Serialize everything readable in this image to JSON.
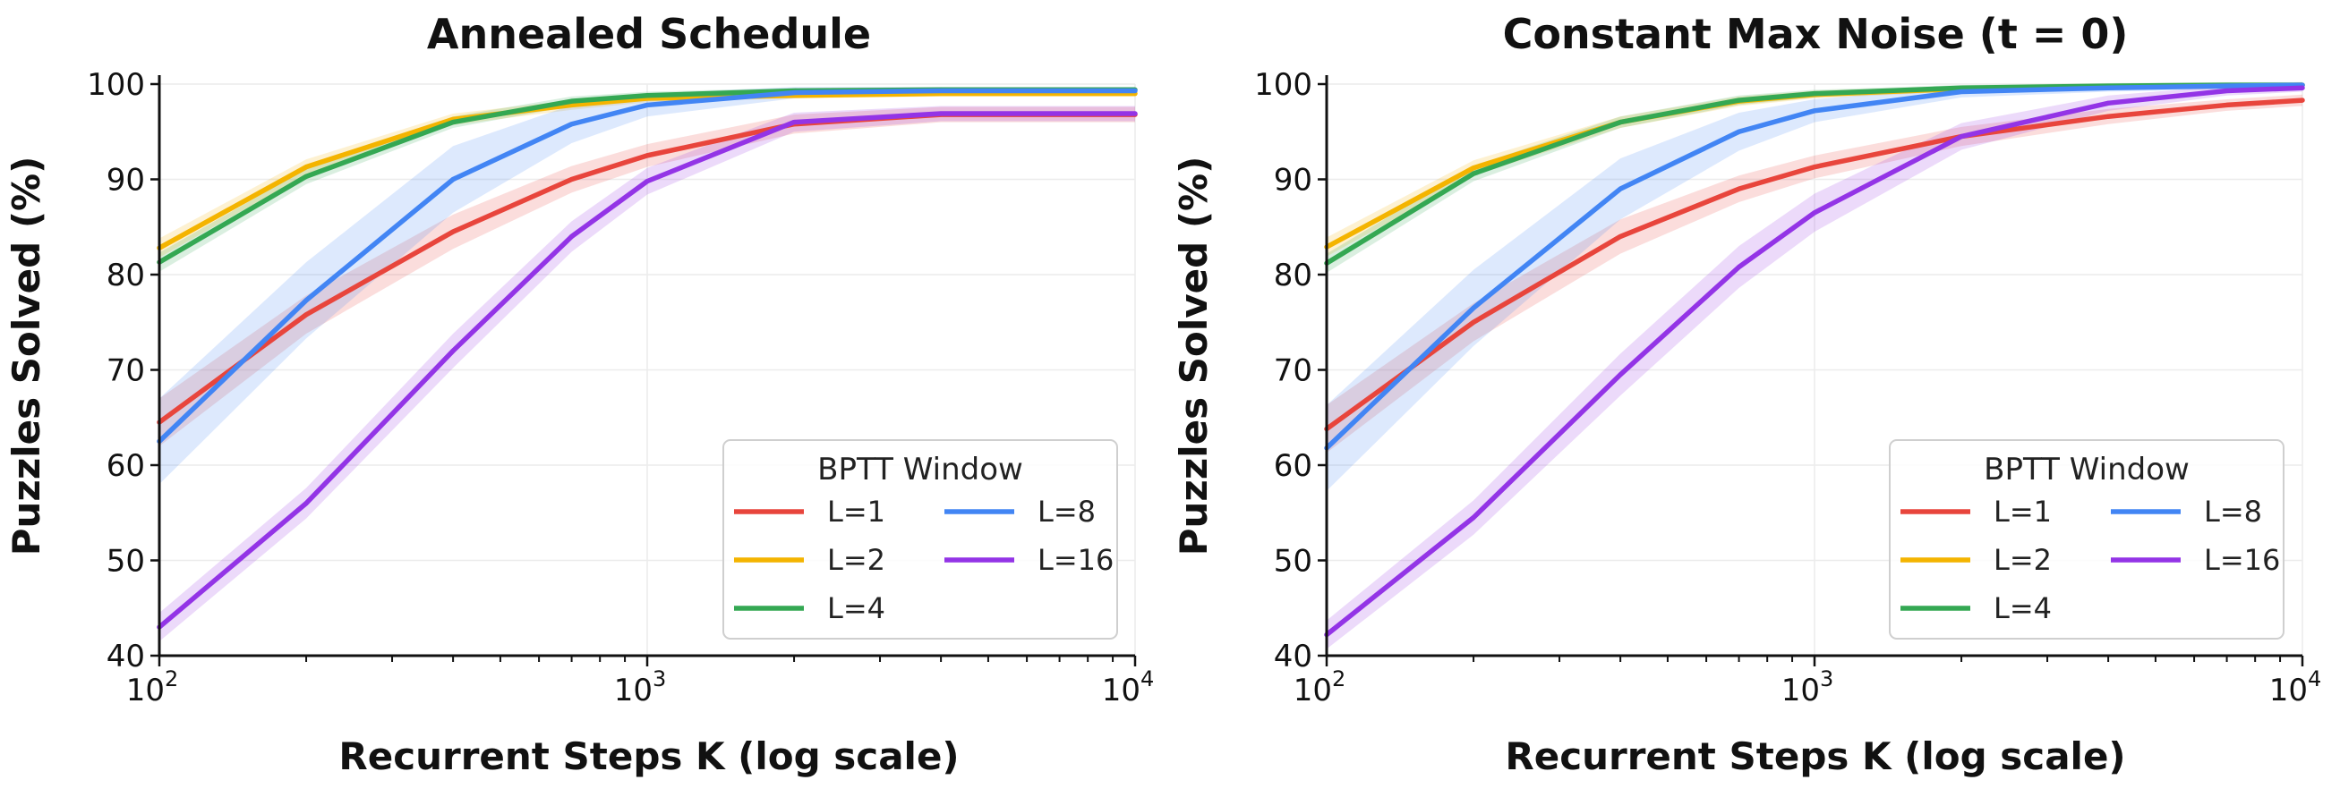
{
  "chart_data": [
    {
      "type": "line",
      "title": "Annealed Schedule",
      "xlabel": "Recurrent Steps K (log scale)",
      "ylabel": "Puzzles Solved (%)",
      "xscale": "log",
      "xlim": [
        100,
        10000
      ],
      "ylim": [
        40,
        100
      ],
      "xticks": [
        {
          "base": "10",
          "exp": "2"
        },
        {
          "base": "10",
          "exp": "3"
        },
        {
          "base": "10",
          "exp": "4"
        }
      ],
      "yticks": [
        "40",
        "50",
        "60",
        "70",
        "80",
        "90",
        "100"
      ],
      "grid": true,
      "legend": {
        "title": "BPTT Window",
        "placement": "lower-right",
        "columns": 2
      },
      "x": [
        100,
        200,
        400,
        700,
        1000,
        2000,
        4000,
        10000
      ],
      "series": [
        {
          "name": "L=1",
          "color": "#e8453c",
          "values": [
            64.5,
            75.8,
            84.5,
            90.0,
            92.5,
            95.8,
            96.8,
            96.8
          ],
          "band": [
            2.5,
            2.0,
            1.8,
            1.4,
            1.2,
            1.0,
            0.8,
            0.8
          ]
        },
        {
          "name": "L=2",
          "color": "#f4b400",
          "values": [
            82.8,
            91.3,
            96.3,
            97.8,
            98.5,
            98.8,
            99.0,
            99.0
          ],
          "band": [
            1.0,
            0.8,
            0.6,
            0.5,
            0.4,
            0.3,
            0.3,
            0.3
          ]
        },
        {
          "name": "L=4",
          "color": "#34a853",
          "values": [
            81.3,
            90.3,
            96.0,
            98.2,
            98.8,
            99.3,
            99.4,
            99.4
          ],
          "band": [
            1.0,
            0.8,
            0.6,
            0.5,
            0.4,
            0.3,
            0.3,
            0.3
          ]
        },
        {
          "name": "L=8",
          "color": "#4285f4",
          "values": [
            62.5,
            77.3,
            90.0,
            95.8,
            97.8,
            99.1,
            99.3,
            99.3
          ],
          "band": [
            4.5,
            4.0,
            3.5,
            2.0,
            1.2,
            0.6,
            0.4,
            0.4
          ]
        },
        {
          "name": "L=16",
          "color": "#9334e6",
          "values": [
            43.0,
            56.0,
            72.0,
            84.0,
            89.8,
            96.0,
            96.9,
            96.9
          ],
          "band": [
            1.5,
            1.6,
            1.8,
            1.6,
            1.4,
            1.0,
            0.8,
            0.8
          ]
        }
      ]
    },
    {
      "type": "line",
      "title": "Constant Max Noise (t = 0)",
      "xlabel": "Recurrent Steps K (log scale)",
      "ylabel": "Puzzles Solved (%)",
      "xscale": "log",
      "xlim": [
        100,
        10000
      ],
      "ylim": [
        40,
        100
      ],
      "xticks": [
        {
          "base": "10",
          "exp": "2"
        },
        {
          "base": "10",
          "exp": "3"
        },
        {
          "base": "10",
          "exp": "4"
        }
      ],
      "yticks": [
        "40",
        "50",
        "60",
        "70",
        "80",
        "90",
        "100"
      ],
      "grid": true,
      "legend": {
        "title": "BPTT Window",
        "placement": "lower-right",
        "columns": 2
      },
      "x": [
        100,
        200,
        400,
        700,
        1000,
        2000,
        4000,
        7000,
        10000
      ],
      "series": [
        {
          "name": "L=1",
          "color": "#e8453c",
          "values": [
            63.8,
            75.0,
            84.0,
            89.0,
            91.3,
            94.5,
            96.6,
            97.8,
            98.3
          ],
          "band": [
            2.5,
            2.0,
            1.8,
            1.4,
            1.2,
            1.0,
            0.8,
            0.6,
            0.6
          ]
        },
        {
          "name": "L=2",
          "color": "#f4b400",
          "values": [
            82.9,
            91.2,
            96.0,
            98.2,
            98.9,
            99.5,
            99.7,
            99.8,
            99.9
          ],
          "band": [
            1.0,
            0.8,
            0.6,
            0.5,
            0.4,
            0.3,
            0.3,
            0.3,
            0.3
          ]
        },
        {
          "name": "L=4",
          "color": "#34a853",
          "values": [
            81.2,
            90.6,
            96.0,
            98.3,
            99.0,
            99.6,
            99.8,
            99.9,
            99.9
          ],
          "band": [
            1.0,
            0.8,
            0.6,
            0.5,
            0.4,
            0.3,
            0.3,
            0.3,
            0.3
          ]
        },
        {
          "name": "L=8",
          "color": "#4285f4",
          "values": [
            61.8,
            76.5,
            89.0,
            95.0,
            97.2,
            99.2,
            99.6,
            99.8,
            99.9
          ],
          "band": [
            4.5,
            4.0,
            3.2,
            2.0,
            1.2,
            0.6,
            0.4,
            0.3,
            0.3
          ]
        },
        {
          "name": "L=16",
          "color": "#9334e6",
          "values": [
            42.2,
            54.5,
            69.5,
            80.8,
            86.5,
            94.5,
            98.0,
            99.3,
            99.6
          ],
          "band": [
            1.5,
            1.8,
            2.2,
            2.2,
            2.0,
            1.4,
            0.8,
            0.5,
            0.4
          ]
        }
      ]
    }
  ]
}
